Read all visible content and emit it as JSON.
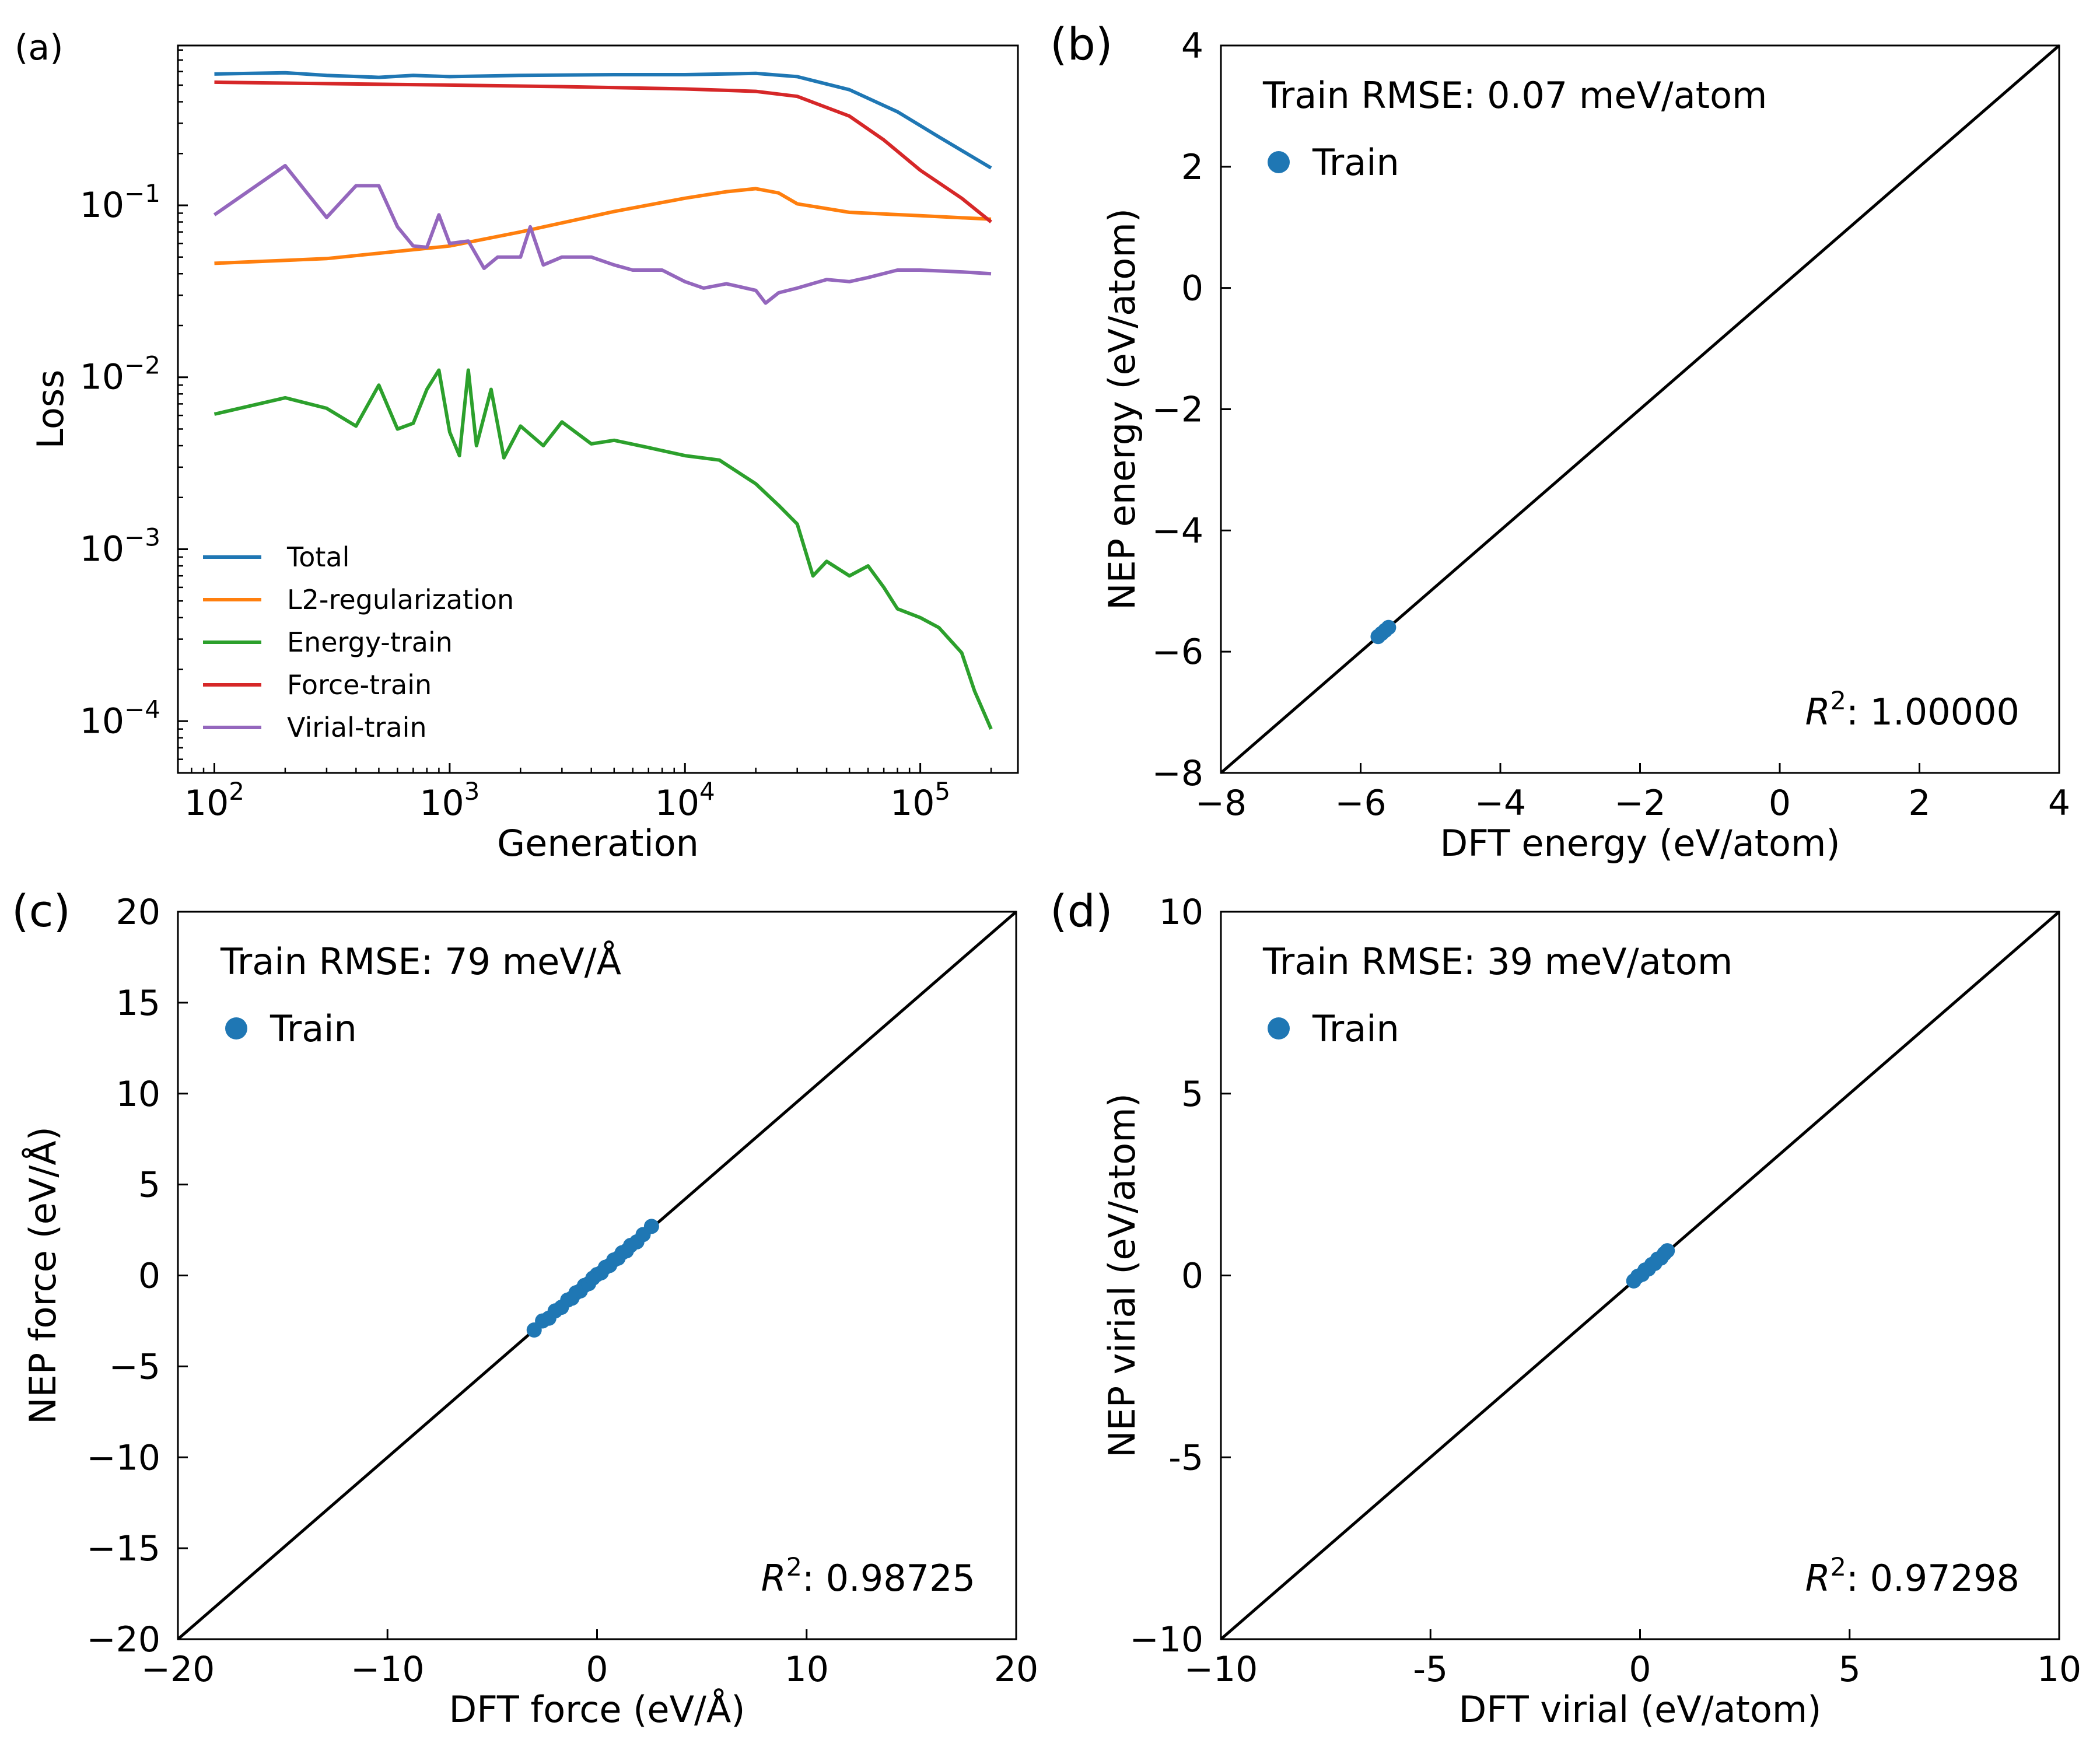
{
  "panel_labels": [
    "(a)",
    "(b)",
    "(c)",
    "(d)"
  ],
  "chart_data": [
    {
      "panel": "(a)",
      "type": "line",
      "xlabel": "Generation",
      "ylabel": "Loss",
      "xscale": "log",
      "yscale": "log",
      "xlim": [
        70,
        260000
      ],
      "ylim": [
        5e-05,
        0.85
      ],
      "x_ticks": [
        100,
        1000,
        10000,
        100000
      ],
      "x_tick_labels": [
        "10^2",
        "10^3",
        "10^4",
        "10^5"
      ],
      "y_ticks": [
        0.0001,
        0.001,
        0.01,
        0.1
      ],
      "y_tick_labels": [
        "10^-4",
        "10^-3",
        "10^-2",
        "10^-1"
      ],
      "legend_position": "lower-left",
      "series": [
        {
          "name": "Total",
          "color": "#1f77b4",
          "x": [
            100,
            200,
            300,
            500,
            700,
            1000,
            2000,
            5000,
            10000,
            20000,
            30000,
            50000,
            80000,
            120000,
            200000
          ],
          "y": [
            0.58,
            0.59,
            0.57,
            0.555,
            0.57,
            0.56,
            0.57,
            0.575,
            0.575,
            0.585,
            0.56,
            0.47,
            0.35,
            0.25,
            0.165
          ]
        },
        {
          "name": "L2-regularization",
          "color": "#ff7f0e",
          "x": [
            100,
            300,
            1000,
            2000,
            5000,
            10000,
            15000,
            20000,
            25000,
            30000,
            50000,
            100000,
            200000
          ],
          "y": [
            0.046,
            0.049,
            0.058,
            0.07,
            0.092,
            0.11,
            0.12,
            0.125,
            0.118,
            0.102,
            0.091,
            0.087,
            0.083
          ]
        },
        {
          "name": "Energy-train",
          "color": "#2ca02c",
          "x": [
            100,
            200,
            300,
            400,
            500,
            600,
            700,
            800,
            900,
            1000,
            1100,
            1200,
            1300,
            1500,
            1700,
            2000,
            2500,
            3000,
            4000,
            5000,
            7000,
            10000,
            14000,
            20000,
            25000,
            30000,
            35000,
            40000,
            50000,
            60000,
            70000,
            80000,
            100000,
            120000,
            150000,
            170000,
            200000
          ],
          "y": [
            0.0061,
            0.0076,
            0.0066,
            0.0052,
            0.009,
            0.005,
            0.0054,
            0.0085,
            0.011,
            0.0048,
            0.0035,
            0.011,
            0.004,
            0.0085,
            0.0034,
            0.0052,
            0.004,
            0.0055,
            0.0041,
            0.0043,
            0.0039,
            0.0035,
            0.0033,
            0.0024,
            0.0018,
            0.0014,
            0.0007,
            0.00085,
            0.0007,
            0.0008,
            0.0006,
            0.00045,
            0.0004,
            0.00035,
            0.00025,
            0.00015,
            9e-05
          ]
        },
        {
          "name": "Force-train",
          "color": "#d62728",
          "x": [
            100,
            300,
            1000,
            3000,
            10000,
            20000,
            30000,
            50000,
            70000,
            100000,
            150000,
            200000
          ],
          "y": [
            0.52,
            0.51,
            0.5,
            0.49,
            0.475,
            0.46,
            0.43,
            0.33,
            0.24,
            0.16,
            0.11,
            0.08
          ]
        },
        {
          "name": "Virial-train",
          "color": "#9467bd",
          "x": [
            100,
            200,
            300,
            400,
            500,
            600,
            700,
            800,
            900,
            1000,
            1200,
            1400,
            1600,
            2000,
            2200,
            2500,
            3000,
            4000,
            5000,
            6000,
            8000,
            10000,
            12000,
            15000,
            20000,
            22000,
            25000,
            30000,
            40000,
            50000,
            60000,
            80000,
            100000,
            150000,
            200000
          ],
          "y": [
            0.088,
            0.17,
            0.085,
            0.13,
            0.13,
            0.075,
            0.058,
            0.057,
            0.088,
            0.06,
            0.062,
            0.043,
            0.05,
            0.05,
            0.075,
            0.045,
            0.05,
            0.05,
            0.045,
            0.042,
            0.042,
            0.036,
            0.033,
            0.035,
            0.032,
            0.027,
            0.031,
            0.033,
            0.037,
            0.036,
            0.038,
            0.042,
            0.042,
            0.041,
            0.04
          ]
        }
      ]
    },
    {
      "panel": "(b)",
      "type": "scatter",
      "xlabel": "DFT energy (eV/atom)",
      "ylabel": "NEP energy (eV/atom)",
      "xlim": [
        -8,
        4
      ],
      "ylim": [
        -8,
        4
      ],
      "ticks": [
        -8,
        -6,
        -4,
        -2,
        0,
        2,
        4
      ],
      "tick_labels": [
        "−8",
        "−6",
        "−4",
        "−2",
        "0",
        "2",
        "4"
      ],
      "rmse_text": "Train RMSE: 0.07 meV/atom",
      "legend_entry": "Train",
      "r2_label": "R",
      "r2_value": ": 1.00000",
      "point_color": "#1f77b4",
      "points": {
        "x": [
          -5.75,
          -5.7,
          -5.65,
          -5.6
        ],
        "y": [
          -5.75,
          -5.7,
          -5.65,
          -5.6
        ]
      }
    },
    {
      "panel": "(c)",
      "type": "scatter",
      "xlabel": "DFT force (eV/Å)",
      "ylabel": "NEP force (eV/Å)",
      "xlim": [
        -20,
        20
      ],
      "ylim": [
        -20,
        20
      ],
      "x_ticks": [
        -20,
        -10,
        0,
        10,
        20
      ],
      "x_tick_labels": [
        "−20",
        "−10",
        "0",
        "10",
        "20"
      ],
      "y_ticks": [
        -20,
        -15,
        -10,
        -5,
        0,
        5,
        10,
        15,
        20
      ],
      "y_tick_labels": [
        "−20",
        "−15",
        "−10",
        "−5",
        "0",
        "5",
        "10",
        "15",
        "20"
      ],
      "rmse_text": "Train RMSE: 79 meV/Å",
      "legend_entry": "Train",
      "r2_label": "R",
      "r2_value": ": 0.98725",
      "point_color": "#1f77b4",
      "points": {
        "x": [
          -3.0,
          -2.6,
          -2.3,
          -2.0,
          -1.7,
          -1.4,
          -1.2,
          -1.0,
          -0.8,
          -0.6,
          -0.4,
          -0.2,
          0.0,
          0.2,
          0.4,
          0.6,
          0.8,
          1.0,
          1.2,
          1.4,
          1.6,
          1.9,
          2.2,
          2.6
        ],
        "y": [
          -3.0,
          -2.5,
          -2.35,
          -1.95,
          -1.75,
          -1.35,
          -1.25,
          -0.95,
          -0.85,
          -0.55,
          -0.45,
          -0.15,
          0.05,
          0.15,
          0.45,
          0.55,
          0.85,
          0.95,
          1.25,
          1.35,
          1.65,
          1.85,
          2.25,
          2.7
        ]
      }
    },
    {
      "panel": "(d)",
      "type": "scatter",
      "xlabel": "DFT virial (eV/atom)",
      "ylabel": "NEP virial (eV/atom)",
      "xlim": [
        -10,
        10
      ],
      "ylim": [
        -10,
        10
      ],
      "ticks": [
        -10,
        -5,
        0,
        5,
        10
      ],
      "x_tick_labels": [
        "−10",
        "-5",
        "0",
        "5",
        "10"
      ],
      "y_tick_labels": [
        "−10",
        "-5",
        "0",
        "5",
        "10"
      ],
      "rmse_text": "Train RMSE: 39 meV/atom",
      "legend_entry": "Train",
      "r2_label": "R",
      "r2_value": ": 0.97298",
      "point_color": "#1f77b4",
      "points": {
        "x": [
          -0.15,
          -0.05,
          0.05,
          0.12,
          0.2,
          0.28,
          0.35,
          0.42,
          0.5,
          0.58,
          0.65
        ],
        "y": [
          -0.15,
          -0.02,
          0.03,
          0.15,
          0.18,
          0.3,
          0.33,
          0.45,
          0.48,
          0.6,
          0.68
        ]
      }
    }
  ]
}
